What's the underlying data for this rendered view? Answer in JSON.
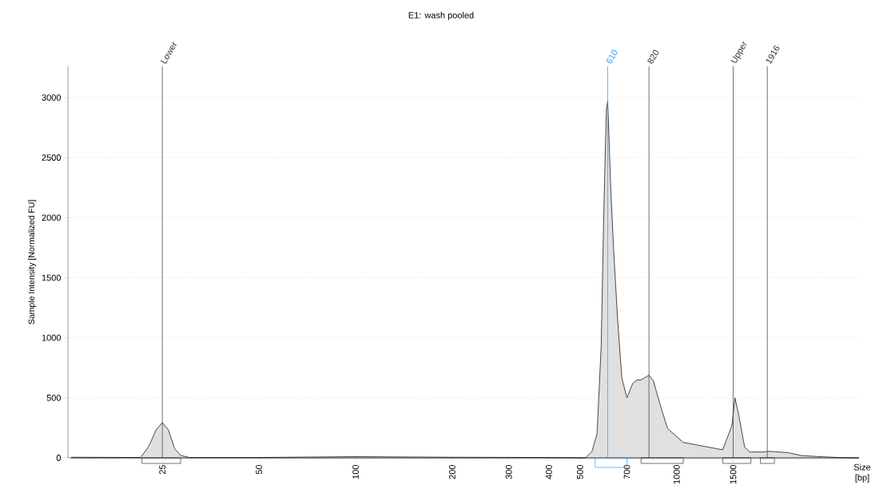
{
  "chart_data": {
    "type": "area",
    "title": "E1: wash pooled",
    "xlabel": "Size [bp]",
    "ylabel": "Sample Intensity [Normalized FU]",
    "x": [
      13,
      21.4,
      22.7,
      23.9,
      25,
      26.1,
      27.3,
      28.5,
      30.4,
      50,
      100,
      200,
      380,
      500,
      520,
      545,
      565,
      582,
      593,
      604,
      610,
      623,
      637,
      655,
      675,
      700,
      730,
      752,
      774,
      820,
      846,
      883,
      937,
      1048,
      1391,
      1486,
      1519,
      1556,
      1629,
      1689,
      1880,
      1916,
      2213,
      2462,
      2844,
      3369,
      3700
    ],
    "values": [
      5,
      3,
      97,
      233,
      293,
      233,
      77,
      20,
      3,
      3,
      10,
      5,
      3,
      0,
      0,
      55,
      200,
      930,
      2040,
      2900,
      2970,
      2260,
      1710,
      1150,
      665,
      500,
      620,
      648,
      648,
      688,
      643,
      466,
      244,
      129,
      67,
      266,
      500,
      377,
      89,
      49,
      49,
      55,
      44,
      18,
      9,
      0,
      0
    ],
    "color": "#e0e0e0",
    "xlim": [
      12.7,
      3700
    ],
    "xticks": [
      25,
      50,
      100,
      200,
      300,
      400,
      500,
      700,
      1000,
      1500
    ],
    "ylim": [
      0,
      3260
    ],
    "yticks": [
      0,
      500,
      1000,
      1500,
      2000,
      2500,
      3000
    ],
    "grid": "y",
    "log": "x",
    "ref_lines": [
      {
        "axis": "x",
        "value": 25,
        "label": "Lower",
        "color": "#333333"
      },
      {
        "axis": "x",
        "value": 610,
        "label": "610",
        "color": "#3399ff"
      },
      {
        "axis": "x",
        "value": 820,
        "label": "820",
        "color": "#333333"
      },
      {
        "axis": "x",
        "value": 1500,
        "label": "Upper",
        "color": "#333333"
      },
      {
        "axis": "x",
        "value": 1916,
        "label": "1916",
        "color": "#333333"
      }
    ]
  }
}
